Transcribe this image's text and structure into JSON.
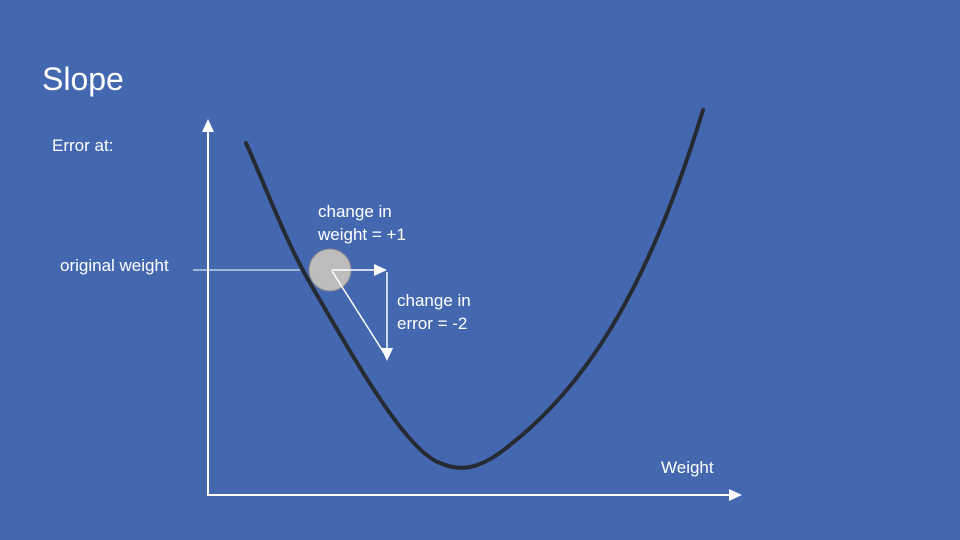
{
  "slide": {
    "title": "Slope",
    "y_axis_label": "Error at:",
    "x_axis_label": "Weight",
    "original_weight_label": "original weight",
    "weight_change_label": [
      "change in",
      "weight = +1"
    ],
    "error_change_label": [
      "change in",
      "error = -2"
    ]
  },
  "colors": {
    "background": "#4468B0",
    "text": "#FFFFFF",
    "axis": "#FFFFFF",
    "curve": "#262A33",
    "ball": "#BDBDBD"
  }
}
